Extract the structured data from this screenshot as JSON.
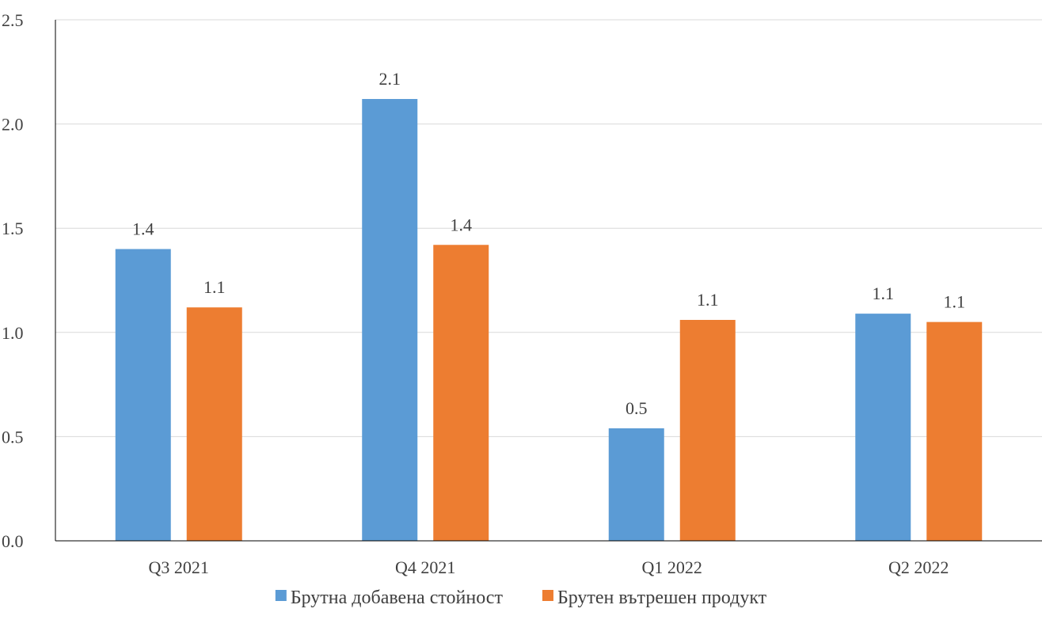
{
  "chart_data": {
    "type": "bar",
    "categories": [
      "Q3 2021",
      "Q4 2021",
      "Q1 2022",
      "Q2 2022"
    ],
    "series": [
      {
        "name": "Брутна добавена стойност",
        "values": [
          1.4,
          2.12,
          0.54,
          1.09
        ],
        "labels": [
          "1.4",
          "2.1",
          "0.5",
          "1.1"
        ],
        "color": "#5B9BD5"
      },
      {
        "name": "Брутен вътрешен продукт",
        "values": [
          1.12,
          1.42,
          1.06,
          1.05
        ],
        "labels": [
          "1.1",
          "1.4",
          "1.1",
          "1.1"
        ],
        "color": "#ED7D31"
      }
    ],
    "ylim": [
      0,
      2.5
    ],
    "yticks": [
      "0.0",
      "0.5",
      "1.0",
      "1.5",
      "2.0",
      "2.5"
    ],
    "grid": true,
    "legend": "bottom",
    "gridline_color": "#D9D9D9",
    "axis_color": "#000000"
  }
}
